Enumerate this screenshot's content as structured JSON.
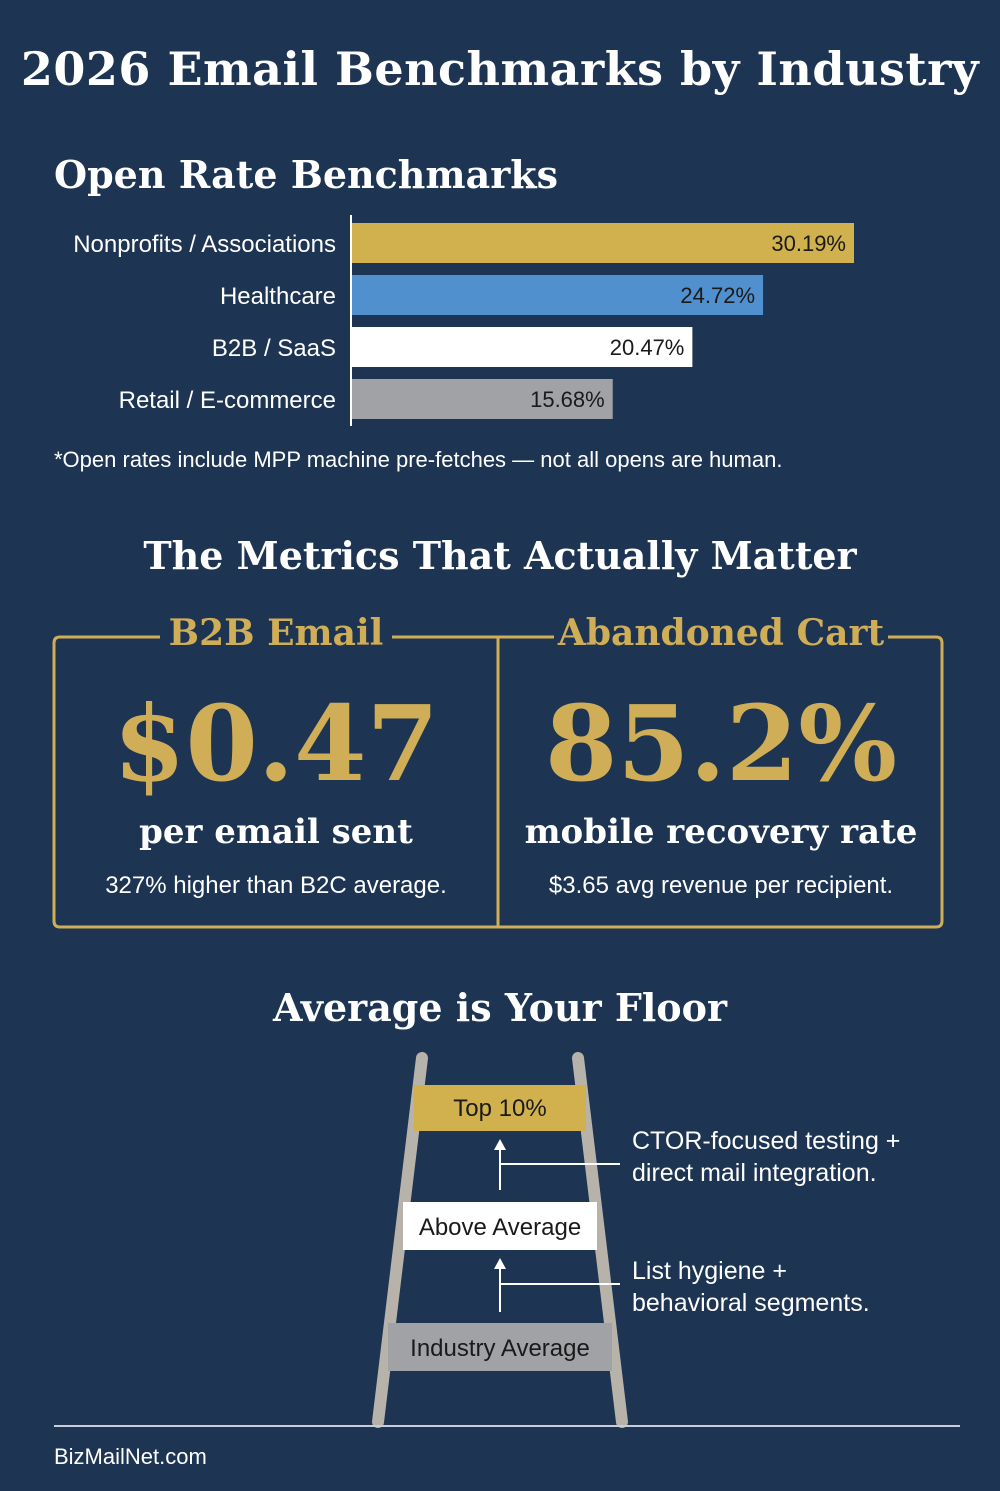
{
  "title": "2026 Email Benchmarks by Industry",
  "open_rate_section": {
    "title": "Open Rate Benchmarks",
    "footnote": "*Open rates include MPP machine pre-fetches — not all opens are human."
  },
  "chart_data": {
    "type": "bar",
    "orientation": "horizontal",
    "title": "Open Rate Benchmarks",
    "categories": [
      "Nonprofits / Associations",
      "Healthcare",
      "B2B / SaaS",
      "Retail / E-commerce"
    ],
    "values": [
      30.19,
      24.72,
      20.47,
      15.68
    ],
    "value_labels": [
      "30.19%",
      "24.72%",
      "20.47%",
      "15.68%"
    ],
    "colors": [
      "#d1b04e",
      "#5090cf",
      "#ffffff",
      "#a0a2a6"
    ],
    "label_colors": [
      "#1a1a1a",
      "#1a1a1a",
      "#1a1a1a",
      "#1a1a1a"
    ],
    "xlim": [
      0,
      30.19
    ],
    "grid": false,
    "legend": "none"
  },
  "metrics_section": {
    "title": "The Metrics That Actually Matter",
    "cards": [
      {
        "heading": "B2B Email",
        "value": "$0.47",
        "unit": "per email sent",
        "note": "327% higher than B2C average."
      },
      {
        "heading": "Abandoned Cart",
        "value": "85.2%",
        "unit": "mobile recovery rate",
        "note": "$3.65 avg revenue per recipient."
      }
    ]
  },
  "floor_section": {
    "title": "Average is Your Floor",
    "rungs": [
      {
        "label": "Top 10%",
        "color": "#d1b04e"
      },
      {
        "label": "Above Average",
        "color": "#ffffff"
      },
      {
        "label": "Industry Average",
        "color": "#a0a2a6"
      }
    ],
    "callouts": [
      {
        "lines": [
          "CTOR-focused testing +",
          "direct mail integration."
        ]
      },
      {
        "lines": [
          "List hygiene +",
          "behavioral segments."
        ]
      }
    ]
  },
  "footer": {
    "brand": "BizMailNet.com"
  },
  "colors": {
    "background": "#1d3453",
    "gold": "#cfae57",
    "rail": "#b7b3aa"
  }
}
